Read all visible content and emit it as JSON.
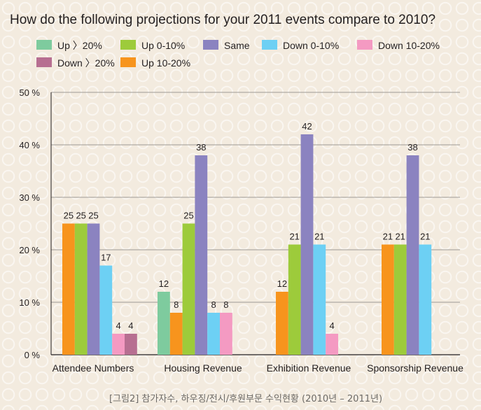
{
  "chart_data": {
    "type": "bar",
    "title": "How do the following projections for your 2011 events compare to 2010?",
    "categories": [
      "Attendee Numbers",
      "Housing Revenue",
      "Exhibition Revenue",
      "Sponsorship Revenue"
    ],
    "series": [
      {
        "name": "Up 〉20%",
        "color": "#7ecb9e",
        "values": [
          null,
          12,
          null,
          null
        ]
      },
      {
        "name": "Up 10-20%",
        "color": "#f7941d",
        "values": [
          25,
          8,
          12,
          21
        ]
      },
      {
        "name": "Up 0-10%",
        "color": "#9dcb3b",
        "values": [
          25,
          25,
          21,
          21
        ]
      },
      {
        "name": "Same",
        "color": "#8b83c0",
        "values": [
          25,
          38,
          42,
          38
        ]
      },
      {
        "name": "Down 0-10%",
        "color": "#6dd0f4",
        "values": [
          17,
          8,
          21,
          21
        ]
      },
      {
        "name": "Down 10-20%",
        "color": "#f49ac2",
        "values": [
          4,
          8,
          4,
          null
        ]
      },
      {
        "name": "Down 〉20%",
        "color": "#b76f91",
        "values": [
          4,
          null,
          null,
          null
        ]
      }
    ],
    "legend_order": [
      "Up 〉20%",
      "Up 0-10%",
      "Same",
      "Down 0-10%",
      "Down 10-20%",
      "Down 〉20%",
      "Up 10-20%"
    ],
    "y_ticks": [
      "0 %",
      "10 %",
      "20 %",
      "30 %",
      "40 %",
      "50 %"
    ],
    "ylim": [
      0,
      50
    ],
    "grid": true,
    "legend_position": "top",
    "caption": "[그림2] 참가자수, 하우징/전시/후원부문 수익현황 (2010년 – 2011년)"
  }
}
